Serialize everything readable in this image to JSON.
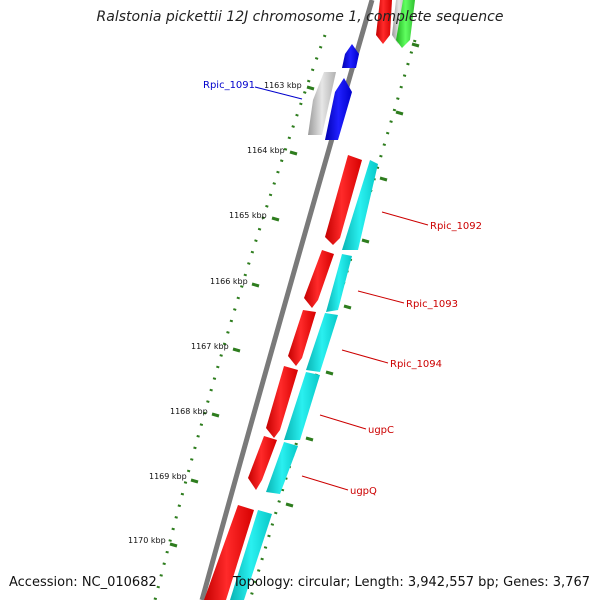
{
  "title": "Ralstonia pickettii 12J chromosome 1, complete sequence",
  "footer": {
    "accession": "Accession: NC_010682",
    "summary": "Topology: circular; Length: 3,942,557 bp; Genes: 3,767"
  },
  "colors": {
    "tick": "#2e7d1e",
    "backbone": "#7a7a7a",
    "forward_gene": "#ff1010",
    "forward_gene_alt": "#0000ff",
    "reverse_gene": "#10dede",
    "reverse_gene_alt": "#3fe03f",
    "pseudo_gene": "#bdbdbd",
    "label_highlight": "#0000cc",
    "label_normal": "#cc0000"
  },
  "scale": {
    "ticks": [
      "1163 kbp",
      "1164 kbp",
      "1165 kbp",
      "1166 kbp",
      "1167 kbp",
      "1168 kbp",
      "1169 kbp",
      "1170 kbp"
    ]
  },
  "genes": [
    {
      "label": "Rpic_1091",
      "highlight": true
    },
    {
      "label": "Rpic_1092",
      "highlight": false
    },
    {
      "label": "Rpic_1093",
      "highlight": false
    },
    {
      "label": "Rpic_1094",
      "highlight": false
    },
    {
      "label": "ugpC",
      "highlight": false
    },
    {
      "label": "ugpQ",
      "highlight": false
    }
  ]
}
